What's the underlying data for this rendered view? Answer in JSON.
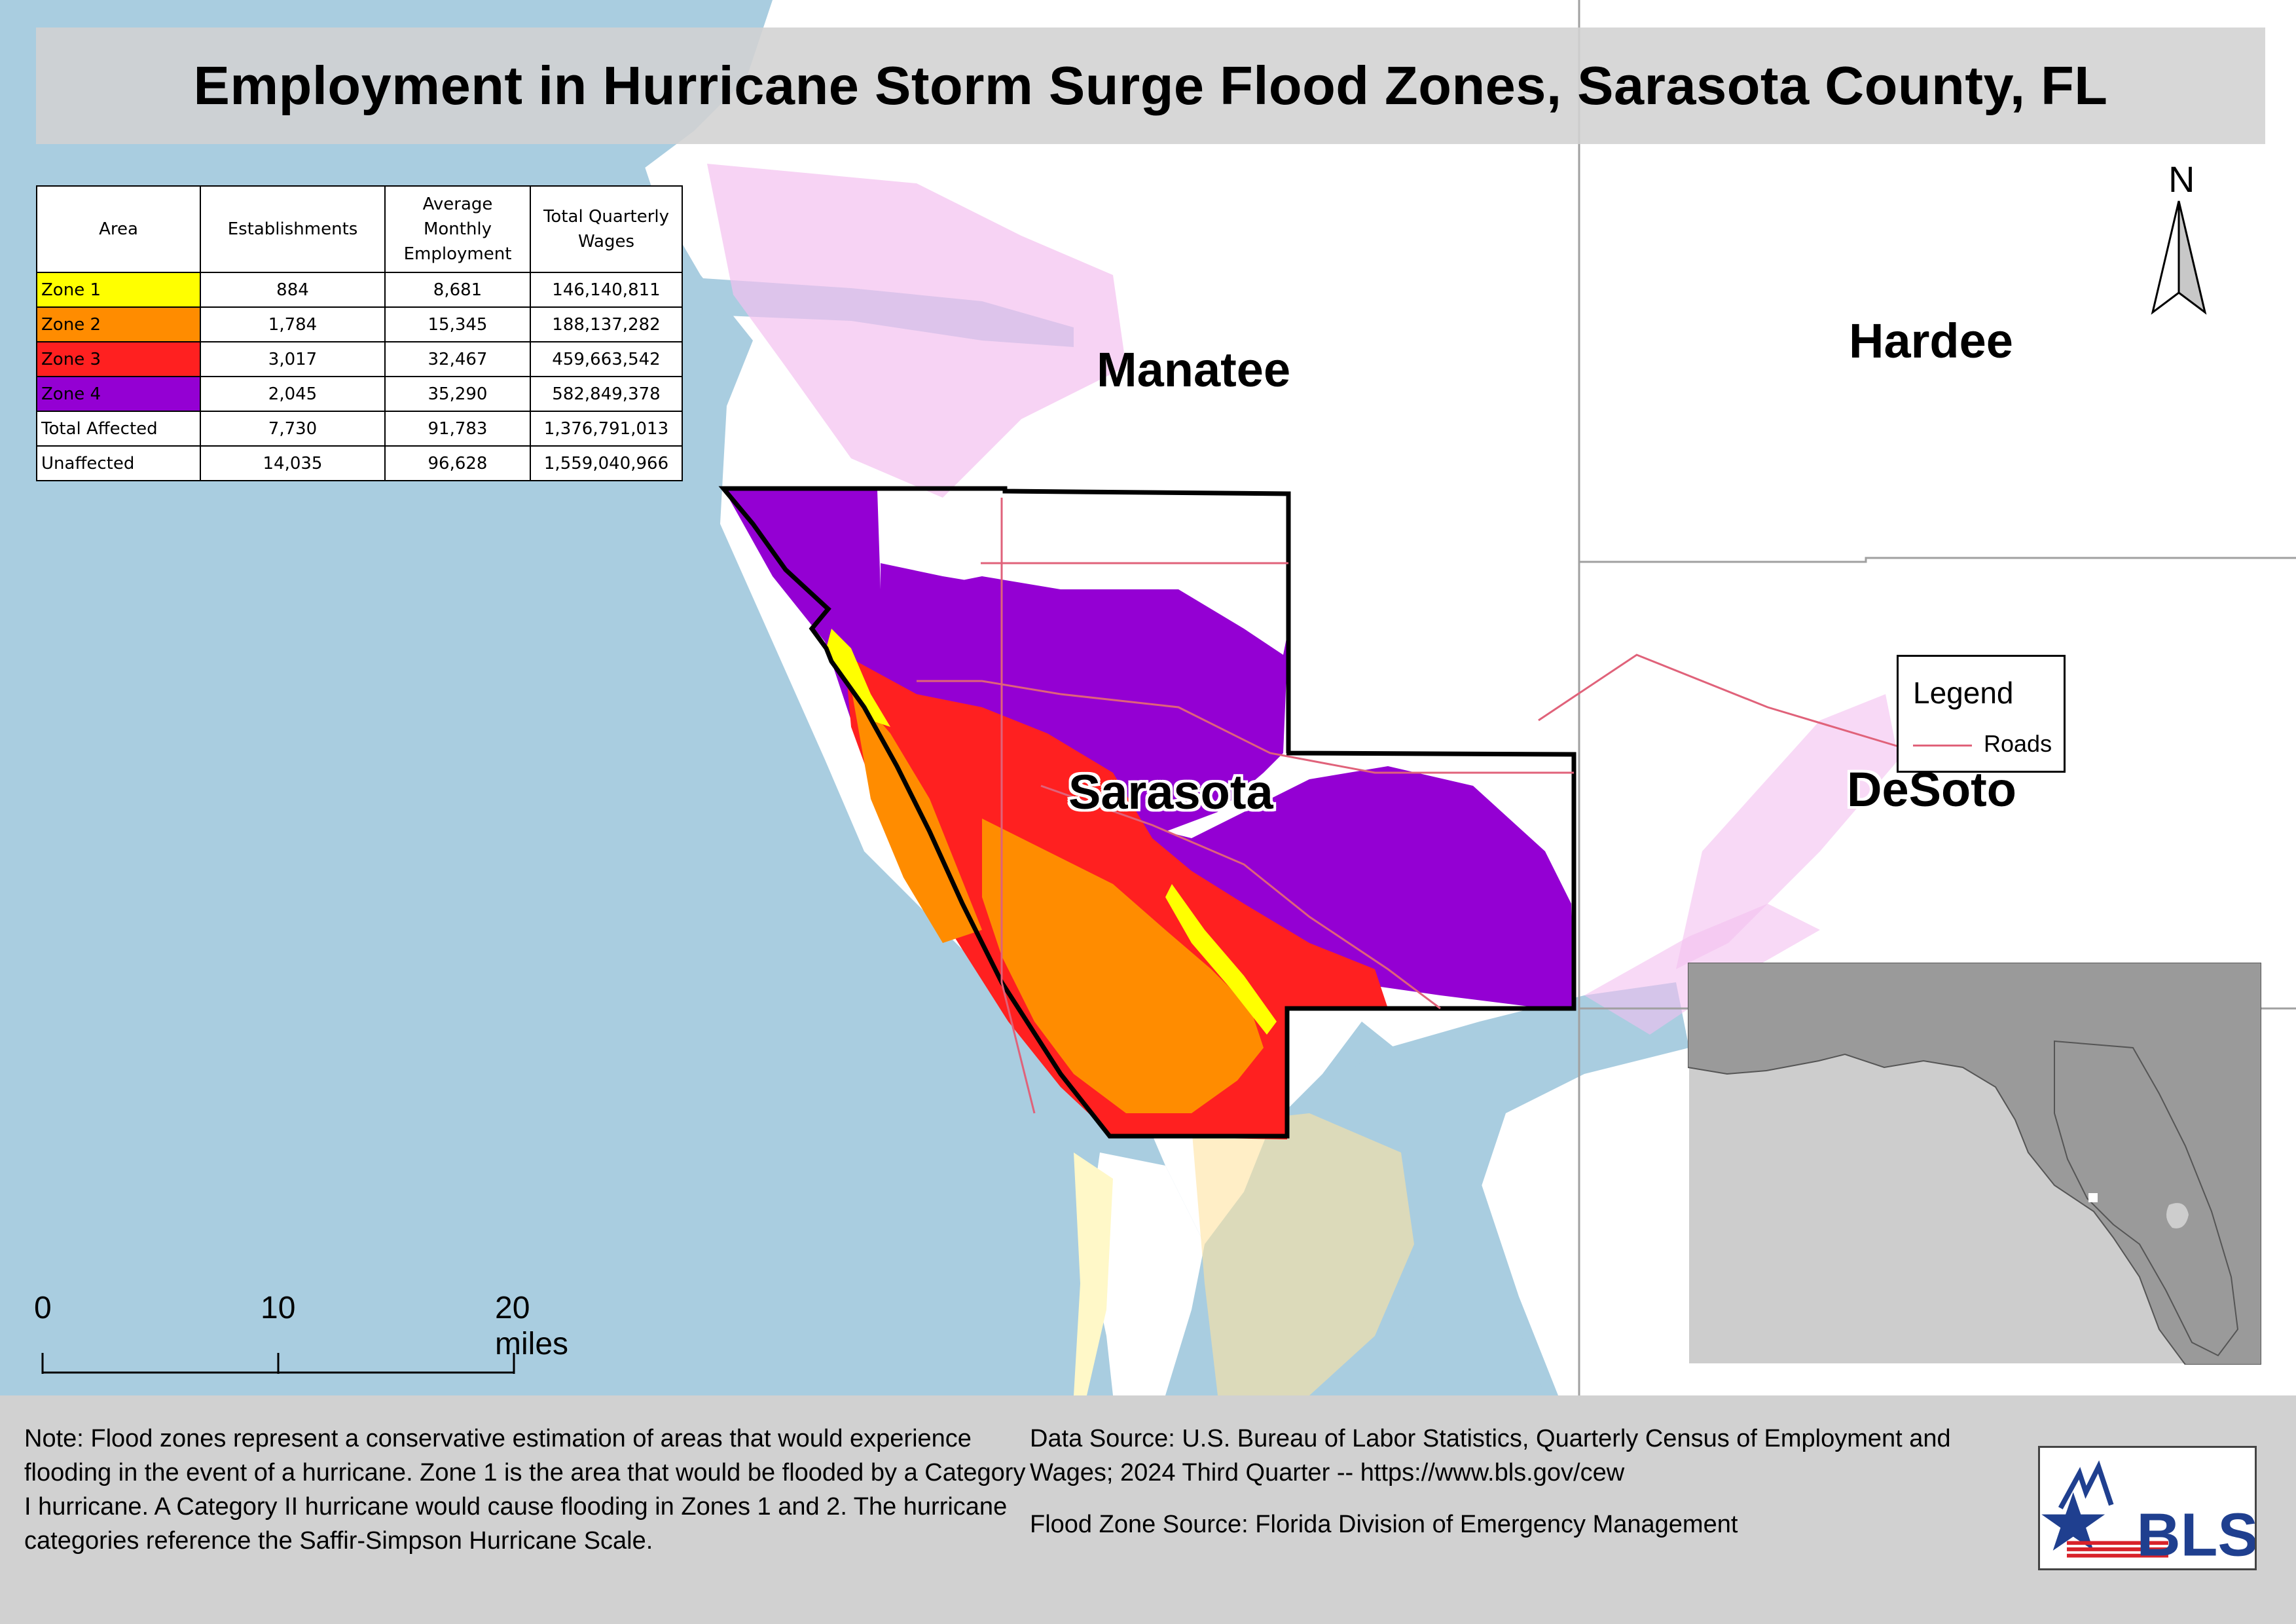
{
  "title": "Employment in Hurricane Storm Surge Flood Zones, Sarasota County, FL",
  "table": {
    "headers": [
      "Area",
      "Establishments",
      "Average Monthly Employment",
      "Total Quarterly Wages"
    ],
    "rows": [
      {
        "area": "Zone 1",
        "establishments": "884",
        "employment": "8,681",
        "wages": "146,140,811",
        "color": "#ffff00"
      },
      {
        "area": "Zone 2",
        "establishments": "1,784",
        "employment": "15,345",
        "wages": "188,137,282",
        "color": "#ff8c00"
      },
      {
        "area": "Zone 3",
        "establishments": "3,017",
        "employment": "32,467",
        "wages": "459,663,542",
        "color": "#ff2020"
      },
      {
        "area": "Zone 4",
        "establishments": "2,045",
        "employment": "35,290",
        "wages": "582,849,378",
        "color": "#9400d3"
      },
      {
        "area": "Total Affected",
        "establishments": "7,730",
        "employment": "91,783",
        "wages": "1,376,791,013",
        "color": "#ffffff"
      },
      {
        "area": "Unaffected",
        "establishments": "14,035",
        "employment": "96,628",
        "wages": "1,559,040,966",
        "color": "#ffffff"
      }
    ]
  },
  "counties": {
    "manatee": "Manatee",
    "hardee": "Hardee",
    "sarasota": "Sarasota",
    "desoto": "DeSoto"
  },
  "north_arrow": "N",
  "legend": {
    "title": "Legend",
    "roads_label": "Roads",
    "roads_color": "#e0627a"
  },
  "scale_bar": {
    "labels": [
      "0",
      "10",
      "20 miles"
    ]
  },
  "footer": {
    "note": "Note: Flood zones represent a conservative estimation of areas that would experience flooding in the event of a hurricane. Zone 1 is the area that would be flooded by a Category I hurricane. A Category II hurricane would cause flooding in Zones 1 and 2. The hurricane categories reference the Saffir-Simpson Hurricane Scale.",
    "data_source": "Data Source: U.S. Bureau of Labor Statistics, Quarterly Census of Employment and Wages; 2024 Third Quarter -- https://www.bls.gov/cew",
    "flood_source": "Flood Zone Source: Florida Division of Emergency Management",
    "logo_text": "BLS"
  },
  "colors": {
    "water": "#a9cde0",
    "land": "#ffffff",
    "zone1": "#ffff00",
    "zone2": "#ff8c00",
    "zone3": "#ff2020",
    "zone4": "#9400d3",
    "bls_blue": "#1f3f8f",
    "bls_red": "#d8222a"
  }
}
